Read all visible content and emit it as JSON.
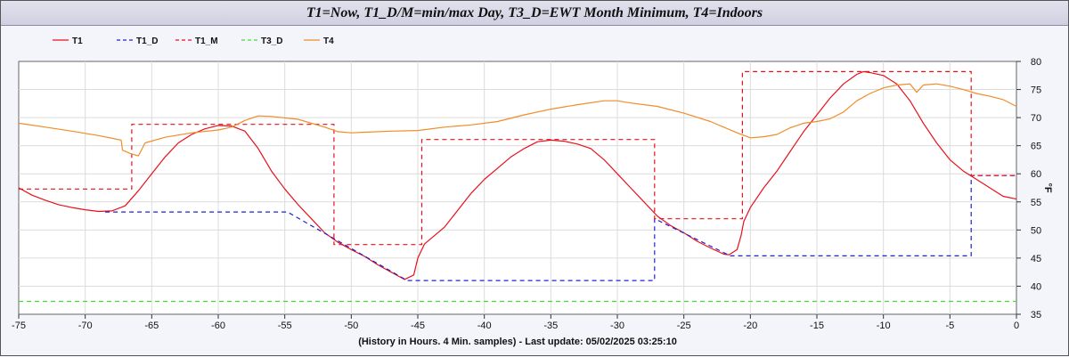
{
  "title": "T1=Now,  T1_D/M=min/max Day, T3_D=EWT Month Minimum, T4=Indoors",
  "footer": "(History in Hours. 4 Min. samples) - Last update: 05/02/2025 03:25:10",
  "chart_data": {
    "type": "line",
    "xlabel": "",
    "ylabel": "°F",
    "xlim": [
      -75,
      0
    ],
    "ylim": [
      35,
      80
    ],
    "x_ticks": [
      -75,
      -70,
      -65,
      -60,
      -55,
      -50,
      -45,
      -40,
      -35,
      -30,
      -25,
      -20,
      -15,
      -10,
      -5,
      0
    ],
    "y_ticks": [
      35,
      40,
      45,
      50,
      55,
      60,
      65,
      70,
      75,
      80
    ],
    "grid": true,
    "legend_position": "top-left",
    "series": [
      {
        "name": "T1",
        "color": "#e8101c",
        "dash": "solid",
        "points": [
          [
            -75,
            57.5
          ],
          [
            -74,
            56.2
          ],
          [
            -73,
            55.3
          ],
          [
            -72,
            54.5
          ],
          [
            -71,
            54.0
          ],
          [
            -70,
            53.6
          ],
          [
            -69,
            53.3
          ],
          [
            -68,
            53.4
          ],
          [
            -67,
            54.3
          ],
          [
            -66,
            57.0
          ],
          [
            -65,
            60.0
          ],
          [
            -64,
            63.0
          ],
          [
            -63,
            65.5
          ],
          [
            -62,
            67.0
          ],
          [
            -61,
            68.0
          ],
          [
            -60,
            68.6
          ],
          [
            -59,
            68.5
          ],
          [
            -58,
            67.6
          ],
          [
            -57,
            64.5
          ],
          [
            -56,
            60.5
          ],
          [
            -55,
            57.3
          ],
          [
            -54,
            54.5
          ],
          [
            -53,
            52.0
          ],
          [
            -52,
            49.5
          ],
          [
            -51,
            47.8
          ],
          [
            -50,
            46.5
          ],
          [
            -49,
            45.3
          ],
          [
            -48,
            43.8
          ],
          [
            -47,
            42.5
          ],
          [
            -46,
            41.2
          ],
          [
            -45.3,
            42.0
          ],
          [
            -45,
            45.0
          ],
          [
            -44.5,
            47.5
          ],
          [
            -44,
            48.5
          ],
          [
            -43,
            50.5
          ],
          [
            -42,
            53.5
          ],
          [
            -41,
            56.5
          ],
          [
            -40,
            59.0
          ],
          [
            -39,
            61.0
          ],
          [
            -38,
            63.0
          ],
          [
            -37,
            64.5
          ],
          [
            -36,
            65.7
          ],
          [
            -35,
            66.0
          ],
          [
            -34,
            65.8
          ],
          [
            -33,
            65.3
          ],
          [
            -32,
            64.5
          ],
          [
            -31,
            62.5
          ],
          [
            -30,
            60.0
          ],
          [
            -29,
            57.5
          ],
          [
            -28,
            55.0
          ],
          [
            -27,
            52.5
          ],
          [
            -26,
            50.8
          ],
          [
            -25,
            49.5
          ],
          [
            -24,
            48.0
          ],
          [
            -23,
            46.8
          ],
          [
            -22,
            45.7
          ],
          [
            -21.6,
            45.6
          ],
          [
            -21,
            46.5
          ],
          [
            -20.7,
            49.0
          ],
          [
            -20.5,
            51.5
          ],
          [
            -20,
            54.0
          ],
          [
            -19,
            57.5
          ],
          [
            -18,
            60.5
          ],
          [
            -17,
            64.0
          ],
          [
            -16,
            67.5
          ],
          [
            -15,
            70.5
          ],
          [
            -14,
            73.5
          ],
          [
            -13,
            76.0
          ],
          [
            -12,
            77.7
          ],
          [
            -11.5,
            78.2
          ],
          [
            -11,
            78.0
          ],
          [
            -10,
            77.5
          ],
          [
            -9,
            76.0
          ],
          [
            -8,
            73.0
          ],
          [
            -7,
            69.0
          ],
          [
            -6,
            65.5
          ],
          [
            -5,
            62.5
          ],
          [
            -4,
            60.5
          ],
          [
            -3,
            59.0
          ],
          [
            -2,
            57.5
          ],
          [
            -1,
            56.0
          ],
          [
            0,
            55.5
          ]
        ]
      },
      {
        "name": "T1_D",
        "color": "#2020d0",
        "dash": "dashed",
        "points": [
          [
            -68.5,
            53.2
          ],
          [
            -54.8,
            53.2
          ],
          [
            -54.8,
            53.2
          ],
          [
            -45.8,
            41.0
          ],
          [
            -27.2,
            41.0
          ],
          [
            -27.2,
            52.0
          ],
          [
            -21.5,
            45.4
          ],
          [
            -3.4,
            45.4
          ],
          [
            -3.4,
            59.7
          ],
          [
            0,
            59.7
          ]
        ]
      },
      {
        "name": "T1_M",
        "color": "#e8101c",
        "dash": "dashed",
        "points": [
          [
            -75,
            57.3
          ],
          [
            -66.5,
            57.3
          ],
          [
            -66.5,
            68.8
          ],
          [
            -51.3,
            68.8
          ],
          [
            -51.3,
            47.4
          ],
          [
            -44.7,
            47.4
          ],
          [
            -44.7,
            66.1
          ],
          [
            -27.2,
            66.1
          ],
          [
            -27.2,
            52.0
          ],
          [
            -20.6,
            52.0
          ],
          [
            -20.6,
            78.2
          ],
          [
            -3.4,
            78.2
          ],
          [
            -3.4,
            59.7
          ],
          [
            0,
            59.7
          ]
        ]
      },
      {
        "name": "T3_D",
        "color": "#40dd30",
        "dash": "dashed",
        "points": [
          [
            -75,
            37.3
          ],
          [
            0,
            37.3
          ]
        ]
      },
      {
        "name": "T4",
        "color": "#f08c28",
        "dash": "solid",
        "points": [
          [
            -75,
            69.0
          ],
          [
            -73,
            68.3
          ],
          [
            -71,
            67.6
          ],
          [
            -69,
            66.8
          ],
          [
            -67.3,
            66.0
          ],
          [
            -67.2,
            64.2
          ],
          [
            -66.5,
            63.5
          ],
          [
            -66,
            63.2
          ],
          [
            -65.5,
            65.5
          ],
          [
            -64,
            66.5
          ],
          [
            -62,
            67.3
          ],
          [
            -60,
            67.8
          ],
          [
            -59,
            68.3
          ],
          [
            -58,
            69.5
          ],
          [
            -57,
            70.3
          ],
          [
            -56,
            70.2
          ],
          [
            -54,
            69.7
          ],
          [
            -52,
            68.3
          ],
          [
            -51,
            67.5
          ],
          [
            -50,
            67.3
          ],
          [
            -49,
            67.4
          ],
          [
            -47,
            67.6
          ],
          [
            -45,
            67.7
          ],
          [
            -43,
            68.3
          ],
          [
            -41,
            68.7
          ],
          [
            -39,
            69.3
          ],
          [
            -37,
            70.5
          ],
          [
            -35,
            71.5
          ],
          [
            -33,
            72.3
          ],
          [
            -31,
            73.0
          ],
          [
            -30,
            73.0
          ],
          [
            -29,
            72.6
          ],
          [
            -27,
            72.0
          ],
          [
            -25,
            70.8
          ],
          [
            -23,
            69.3
          ],
          [
            -21,
            67.3
          ],
          [
            -20,
            66.4
          ],
          [
            -19,
            66.6
          ],
          [
            -18,
            67.0
          ],
          [
            -17,
            68.2
          ],
          [
            -16,
            69.0
          ],
          [
            -15,
            69.3
          ],
          [
            -14,
            69.8
          ],
          [
            -13,
            71.0
          ],
          [
            -12,
            73.0
          ],
          [
            -11,
            74.3
          ],
          [
            -10,
            75.3
          ],
          [
            -9,
            75.8
          ],
          [
            -8,
            76.0
          ],
          [
            -7.5,
            74.5
          ],
          [
            -7,
            75.8
          ],
          [
            -6,
            76.0
          ],
          [
            -5,
            75.6
          ],
          [
            -4,
            75.0
          ],
          [
            -3,
            74.3
          ],
          [
            -2,
            73.8
          ],
          [
            -1,
            73.2
          ],
          [
            0,
            72.0
          ]
        ]
      }
    ]
  }
}
